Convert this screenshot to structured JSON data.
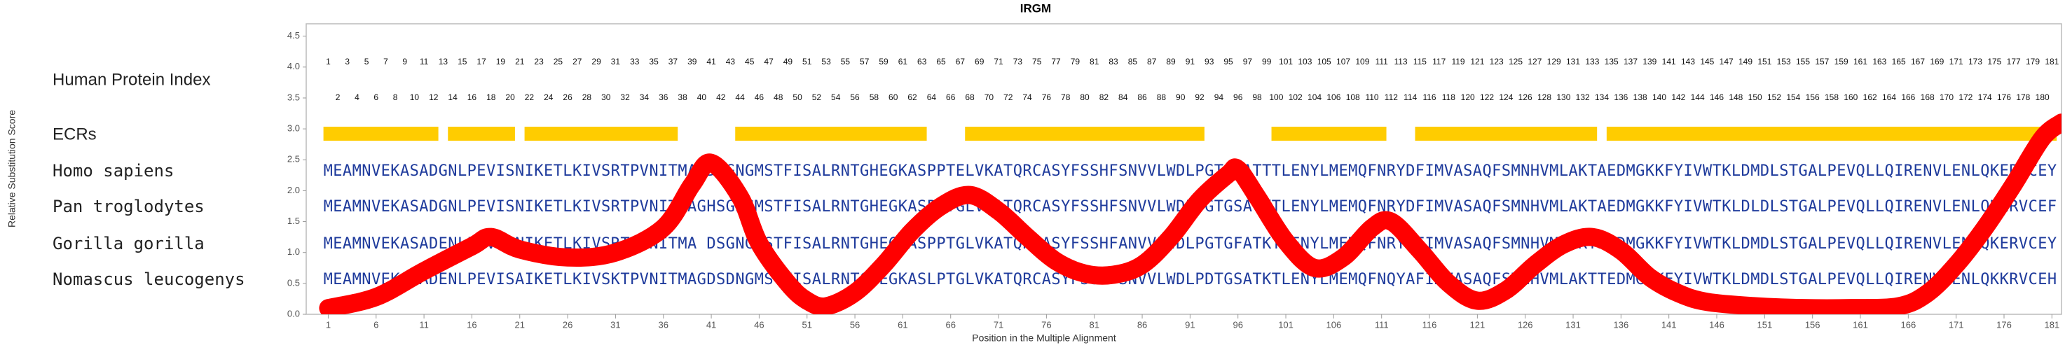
{
  "chart_data": {
    "type": "line",
    "title": "IRGM",
    "xlabel": "Position in the Multiple Alignment",
    "ylabel": "Relative Substitution Score",
    "xlim": [
      -1.3,
      182
    ],
    "ylim": [
      0,
      4.7
    ],
    "xticks": [
      1,
      6,
      11,
      16,
      21,
      26,
      31,
      36,
      41,
      46,
      51,
      56,
      61,
      66,
      71,
      76,
      81,
      86,
      91,
      96,
      101,
      106,
      111,
      116,
      121,
      126,
      131,
      136,
      141,
      146,
      151,
      156,
      161,
      166,
      171,
      176,
      181
    ],
    "yticks": [
      {
        "value": 0,
        "label": "0.0"
      },
      0.5,
      {
        "value": 1,
        "label": "1.0"
      },
      1.5,
      {
        "value": 2,
        "label": "2.0"
      },
      2.5,
      {
        "value": 3,
        "label": "3.0"
      },
      3.5,
      {
        "value": 4,
        "label": "4.0"
      },
      4.5
    ],
    "x": [
      1,
      6,
      11,
      16,
      18,
      21,
      26,
      31,
      36,
      39,
      41,
      44,
      46,
      49,
      51,
      53,
      56,
      59,
      62,
      65,
      68,
      71,
      74,
      77,
      80,
      83,
      86,
      89,
      92,
      95,
      96,
      98,
      101,
      104,
      107,
      110,
      112,
      115,
      118,
      121,
      124,
      127,
      130,
      133,
      136,
      139,
      142,
      145,
      150,
      155,
      160,
      165,
      168,
      171,
      174,
      177,
      180,
      182
    ],
    "values": [
      0.1,
      0.28,
      0.7,
      1.1,
      1.25,
      1.05,
      0.92,
      1.0,
      1.4,
      2.1,
      2.45,
      1.9,
      1.15,
      0.5,
      0.22,
      0.13,
      0.35,
      0.8,
      1.35,
      1.75,
      1.93,
      1.67,
      1.25,
      0.86,
      0.66,
      0.64,
      0.8,
      1.25,
      1.85,
      2.27,
      2.35,
      1.9,
      1.18,
      0.75,
      0.92,
      1.4,
      1.5,
      1.03,
      0.5,
      0.22,
      0.39,
      0.8,
      1.13,
      1.25,
      1.03,
      0.6,
      0.34,
      0.2,
      0.13,
      0.1,
      0.1,
      0.13,
      0.34,
      0.8,
      1.4,
      2.1,
      2.85,
      3.1
    ],
    "color": "#ff0000",
    "index_label": "Human Protein Index",
    "index_odd": [
      1,
      3,
      5,
      7,
      9,
      11,
      13,
      15,
      17,
      19,
      21,
      23,
      25,
      27,
      29,
      31,
      33,
      35,
      37,
      39,
      41,
      43,
      45,
      47,
      49,
      51,
      53,
      55,
      57,
      59,
      61,
      63,
      65,
      67,
      69,
      71,
      73,
      75,
      77,
      79,
      81,
      83,
      85,
      87,
      89,
      91,
      93,
      95,
      97,
      99,
      101,
      103,
      105,
      107,
      109,
      111,
      113,
      115,
      117,
      119,
      121,
      123,
      125,
      127,
      129,
      131,
      133,
      135,
      137,
      139,
      141,
      143,
      145,
      147,
      149,
      151,
      153,
      155,
      157,
      159,
      161,
      163,
      165,
      167,
      169,
      171,
      173,
      175,
      177,
      179,
      181
    ],
    "index_even": [
      2,
      4,
      6,
      8,
      10,
      12,
      14,
      16,
      18,
      20,
      22,
      24,
      26,
      28,
      30,
      32,
      34,
      36,
      38,
      40,
      42,
      44,
      46,
      48,
      50,
      52,
      54,
      56,
      58,
      60,
      62,
      64,
      66,
      68,
      70,
      72,
      74,
      76,
      78,
      80,
      82,
      84,
      86,
      88,
      90,
      92,
      94,
      96,
      98,
      100,
      102,
      104,
      106,
      108,
      110,
      112,
      114,
      116,
      118,
      120,
      122,
      124,
      126,
      128,
      130,
      132,
      134,
      136,
      138,
      140,
      142,
      144,
      146,
      148,
      150,
      152,
      154,
      156,
      158,
      160,
      162,
      164,
      166,
      168,
      170,
      172,
      174,
      176,
      178,
      180
    ],
    "ecr_label": "ECRs",
    "ecr_color": "#ffcc00",
    "ecrs": [
      [
        1,
        12
      ],
      [
        14,
        20
      ],
      [
        22,
        37
      ],
      [
        44,
        63
      ],
      [
        68,
        92
      ],
      [
        100,
        111
      ],
      [
        115,
        133
      ],
      [
        135,
        181
      ]
    ],
    "sequences": [
      {
        "name": "Homo sapiens",
        "sequence": "MEAMNVEKASADGNLPEVISNIKETLKIVSRTPVNITMAGDSGNGMSTFISALRNTGHEGKASPPTELVKATQRCASYFSSHFSNVVLWDLPGTGSATTTLENYLMEMQFNRYDFIMVASAQFSMNHVMLAKTAEDMGKKFYIVWTKLDMDLSTGALPEVQLLQIRENVLENLQKERVCEY"
      },
      {
        "name": "Pan troglodytes",
        "sequence": "MEAMNVEKASADGNLPEVISNIKETLKIVSRTPVNITTAGHSGNGMSTFISALRNTGHEGKASPPTGLVKATQRCASYFSSHFSNVVLWDLPGTGSATKTLENYLMEMQFNRYDFIMVASAQFSMNHVMLAKTAEDMGKKFYIVWTKLDLDLSTGALPEVQLLQIRENVLENLQKERVCEF"
      },
      {
        "name": "Gorilla gorilla",
        "sequence": "MEAMNVEKASADENLPEVISNIKETLKIVSRTPVNITMA DSGNGMSTFISALRNTGHEGKASPPTGLVKATQRCASYFSSHFANVVLWDLPGTGFATKTLENYLMEMQFNRYDFIMVASAQFSMNHVMLAKTPEDMGKKFYIVWTKLDMDLSTGALPEVQLLQIRENVLENLQKERVCEY"
      },
      {
        "name": "Nomascus leucogenys",
        "sequence": "MEAMNVEKASADENLPEVISAIKETLKIVSKTPVNITMAGDSDNGMSTFISALRNTGHEGKASLPTGLVKATQRCASYFSSHFSNVVLWDLPDTGSATKTLENYLMEMQFNQYAFIMVASAQFSMNHVMLAKTTEDMGKKFYIVWTKLDMDLSTGALPEVQLLQIRENVLENLQKKRVCEH"
      }
    ]
  }
}
